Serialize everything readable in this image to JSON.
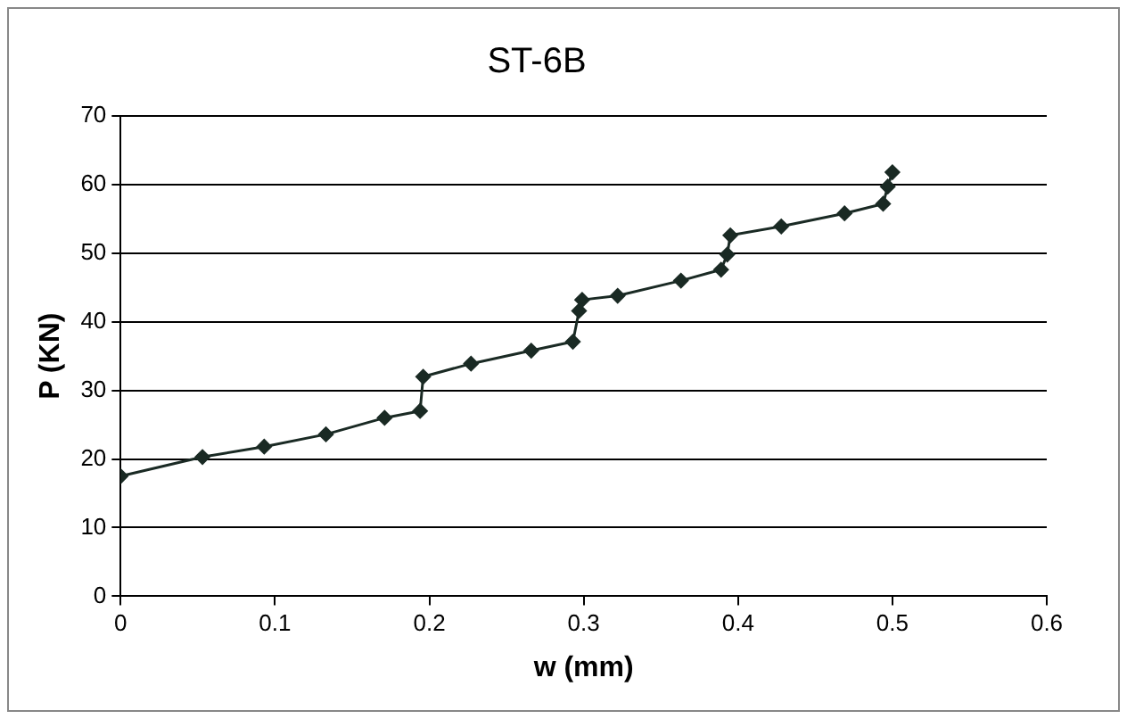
{
  "chart_data": {
    "type": "line",
    "title": "ST-6B",
    "xlabel": "w (mm)",
    "ylabel": "P (KN)",
    "x": [
      0,
      0.053,
      0.093,
      0.133,
      0.171,
      0.194,
      0.196,
      0.227,
      0.266,
      0.293,
      0.297,
      0.299,
      0.322,
      0.363,
      0.389,
      0.393,
      0.395,
      0.428,
      0.469,
      0.494,
      0.497,
      0.5
    ],
    "values": [
      17.5,
      20.3,
      21.8,
      23.6,
      26,
      27,
      32,
      33.9,
      35.8,
      37.1,
      41.6,
      43.2,
      43.8,
      46,
      47.6,
      49.8,
      52.6,
      53.9,
      55.8,
      57.2,
      59.7,
      61.8
    ],
    "color": "#1a2a24",
    "marker": "diamond",
    "xlim": [
      0,
      0.6
    ],
    "xticks": [
      0,
      0.1,
      0.2,
      0.3,
      0.4,
      0.5,
      0.6
    ],
    "ylim": [
      0,
      70
    ],
    "yticks": [
      0,
      10,
      20,
      30,
      40,
      50,
      60,
      70
    ],
    "grid": "y"
  }
}
